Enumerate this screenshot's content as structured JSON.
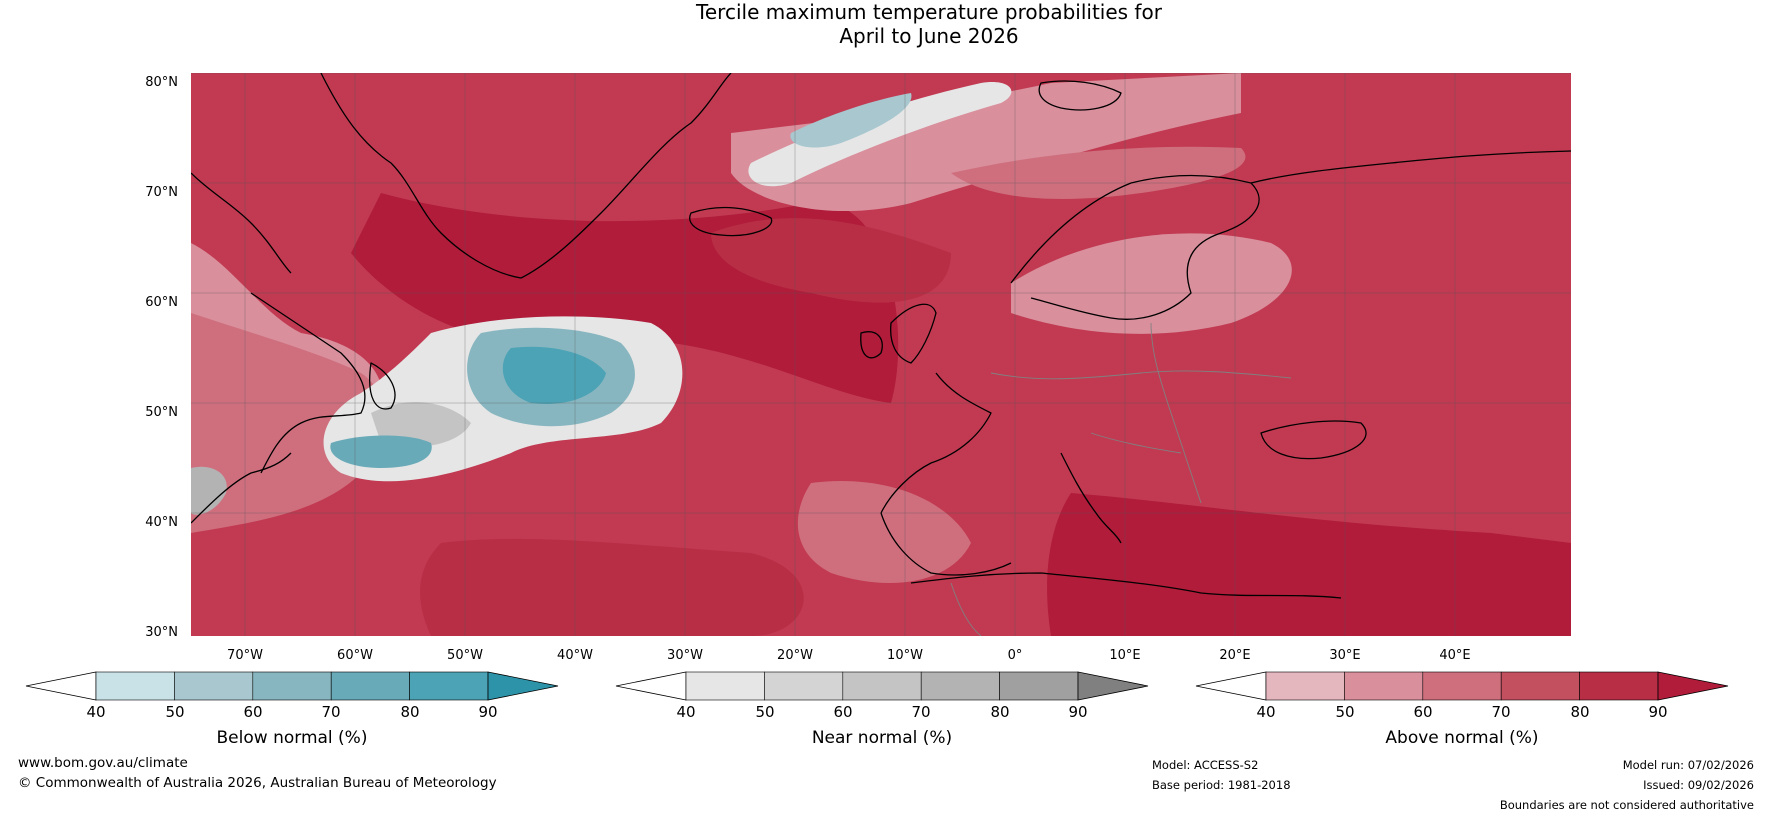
{
  "title": {
    "line1": "Tercile maximum temperature probabilities for",
    "line2": "April to June 2026"
  },
  "map": {
    "lat_labels": [
      "80°N",
      "70°N",
      "60°N",
      "50°N",
      "40°N",
      "30°N"
    ],
    "lon_labels": [
      "70°W",
      "60°W",
      "50°W",
      "40°W",
      "30°W",
      "20°W",
      "10°W",
      "0°",
      "10°E",
      "20°E",
      "30°E",
      "40°E"
    ],
    "colors": {
      "sea_base": "#c13a52",
      "land_line": "#000000",
      "border_line": "#808080",
      "grid_line": "#555555"
    }
  },
  "legend": {
    "below": {
      "label": "Below normal (%)",
      "ticks": [
        "40",
        "50",
        "60",
        "70",
        "80",
        "90"
      ],
      "colors": [
        "#ffffff",
        "#c9e2e8",
        "#a8c7cf",
        "#88b6c0",
        "#69aab8",
        "#4ba3b5",
        "#2d93a8"
      ]
    },
    "near": {
      "label": "Near normal (%)",
      "ticks": [
        "40",
        "50",
        "60",
        "70",
        "80",
        "90"
      ],
      "colors": [
        "#ffffff",
        "#e6e6e6",
        "#d4d4d4",
        "#c4c4c4",
        "#b3b3b3",
        "#a0a0a0",
        "#808080"
      ]
    },
    "above": {
      "label": "Above normal (%)",
      "ticks": [
        "40",
        "50",
        "60",
        "70",
        "80",
        "90"
      ],
      "colors": [
        "#ffffff",
        "#e4b7bf",
        "#d98f9c",
        "#cf6f7e",
        "#c3505f",
        "#b82e45",
        "#b01c3a"
      ]
    }
  },
  "footer": {
    "website": "www.bom.gov.au/climate",
    "copyright": "© Commonwealth of Australia 2026, Australian Bureau of Meteorology",
    "model": "Model: ACCESS-S2",
    "base_period": "Base period: 1981-2018",
    "model_run": "Model run: 07/02/2026",
    "issued": "Issued: 09/02/2026",
    "disclaimer": "Boundaries are not considered authoritative"
  }
}
